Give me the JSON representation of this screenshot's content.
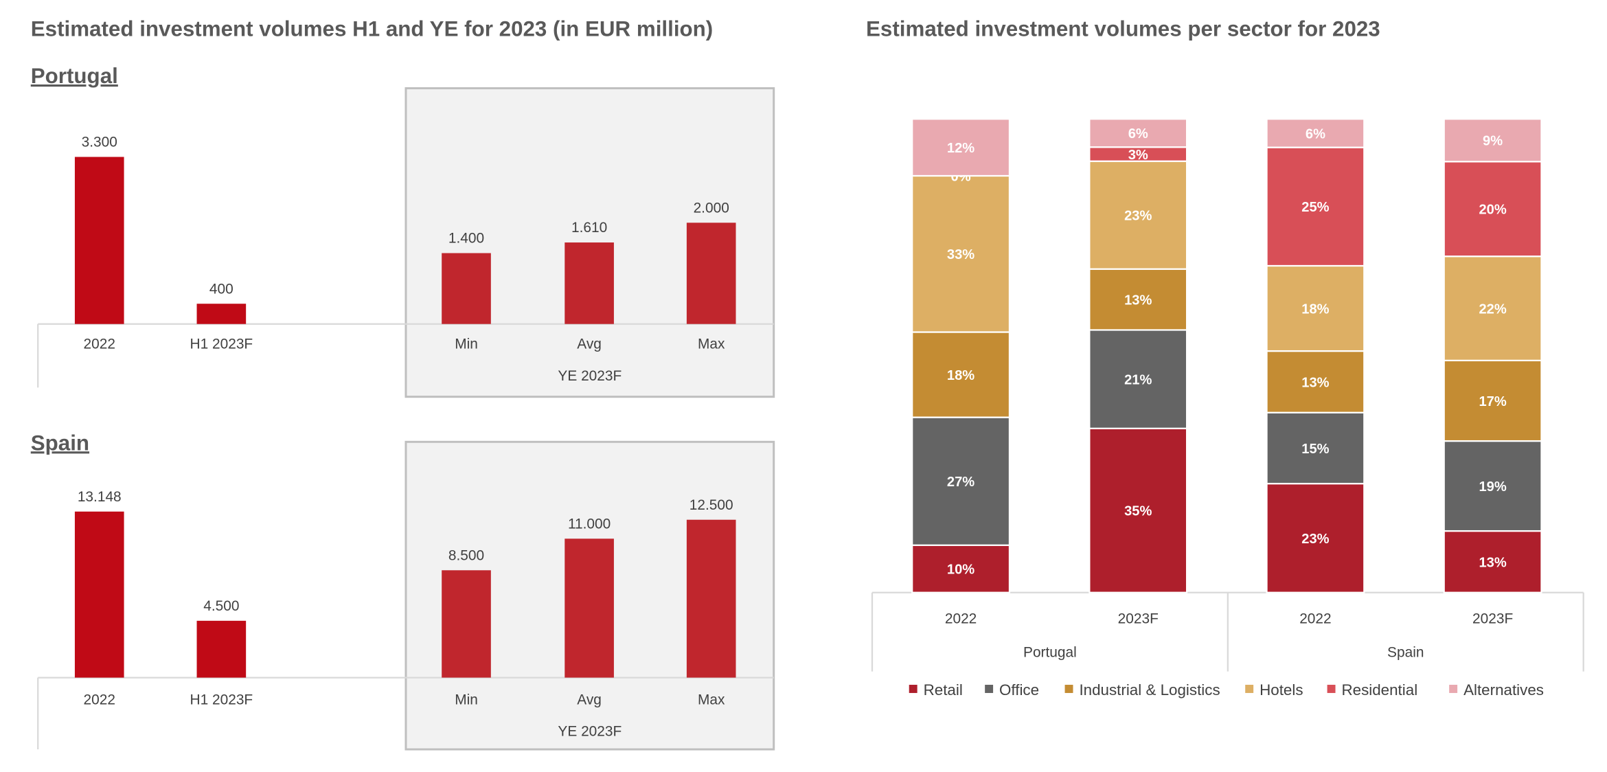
{
  "left_title": "Estimated investment volumes H1 and YE for 2023 (in EUR million)",
  "right_title": "Estimated investment volumes per sector for 2023",
  "colors": {
    "bar": "#C00A16",
    "bar_forecast": "#C0262D",
    "box_fill": "#F2F2F2",
    "box_border": "#BFBFBF",
    "text": "#595959"
  },
  "chart_data": [
    {
      "type": "bar",
      "title": "Portugal",
      "categories": [
        "2022",
        "H1 2023F",
        "Min",
        "Avg",
        "Max"
      ],
      "values": [
        3300,
        400,
        1400,
        1610,
        2000
      ],
      "data_labels": [
        "3.300",
        "400",
        "1.400",
        "1.610",
        "2.000"
      ],
      "group_label": "YE 2023F",
      "grouped_categories": [
        "Min",
        "Avg",
        "Max"
      ]
    },
    {
      "type": "bar",
      "title": "Spain",
      "categories": [
        "2022",
        "H1 2023F",
        "Min",
        "Avg",
        "Max"
      ],
      "values": [
        13148,
        4500,
        8500,
        11000,
        12500
      ],
      "data_labels": [
        "13.148",
        "4.500",
        "8.500",
        "11.000",
        "12.500"
      ],
      "group_label": "YE 2023F",
      "grouped_categories": [
        "Min",
        "Avg",
        "Max"
      ]
    },
    {
      "type": "bar",
      "stacked": true,
      "groups": [
        {
          "label": "Portugal",
          "categories": [
            "2022",
            "2023F"
          ]
        },
        {
          "label": "Spain",
          "categories": [
            "2022",
            "2023F"
          ]
        }
      ],
      "series": [
        {
          "name": "Retail",
          "color": "#AE1F2C",
          "values": [
            10,
            35,
            23,
            13
          ]
        },
        {
          "name": "Office",
          "color": "#646464",
          "values": [
            27,
            21,
            15,
            19
          ]
        },
        {
          "name": "Industrial & Logistics",
          "color": "#C48C33",
          "values": [
            18,
            13,
            13,
            17
          ]
        },
        {
          "name": "Hotels",
          "color": "#DDAF64",
          "values": [
            33,
            23,
            18,
            22
          ]
        },
        {
          "name": "Residential",
          "color": "#D84F57",
          "values": [
            0,
            3,
            25,
            20
          ]
        },
        {
          "name": "Alternatives",
          "color": "#E9A9B0",
          "values": [
            12,
            6,
            6,
            9
          ]
        }
      ],
      "unit": "%",
      "legend": "bottom"
    }
  ]
}
